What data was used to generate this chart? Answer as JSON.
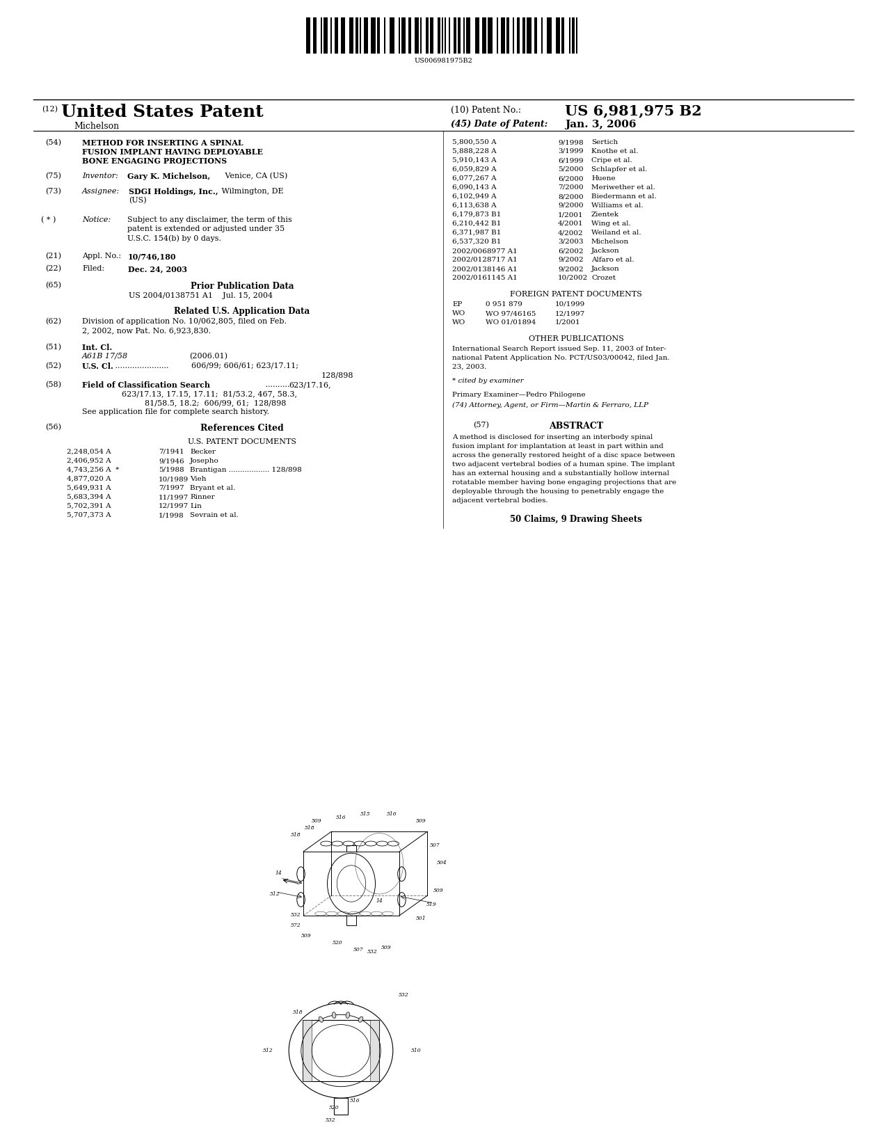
{
  "bg": "#ffffff",
  "barcode_text": "US006981975B2",
  "patent_number": "US 6,981,975 B2",
  "patent_date": "Jan. 3, 2006",
  "title_num": "(12)",
  "title_main": "United States Patent",
  "inventor_name": "Michelson",
  "pno_label": "(10) Patent No.:",
  "date_label": "(45) Date of Patent:",
  "s54_label": "(54)",
  "s54_line1": "METHOD FOR INSERTING A SPINAL",
  "s54_line2": "FUSION IMPLANT HAVING DEPLOYABLE",
  "s54_line3": "BONE ENGAGING PROJECTIONS",
  "s75_label": "(75)",
  "s75_bold": "Gary K. Michelson,",
  "s75_rest": " Venice, CA (US)",
  "s73_label": "(73)",
  "s73_bold": "SDGI Holdings, Inc.,",
  "s73_rest": " Wilmington, DE",
  "s73_line2": "(US)",
  "star_label": "( * )",
  "star_notice": "Subject to any disclaimer, the term of this",
  "star_notice2": "patent is extended or adjusted under 35",
  "star_notice3": "U.S.C. 154(b) by 0 days.",
  "s21_label": "(21)",
  "s21_bold": "10/746,180",
  "s22_label": "(22)",
  "s22_bold": "Dec. 24, 2003",
  "s65_label": "(65)",
  "s65_center": "Prior Publication Data",
  "s65_text": "US 2004/0138751 A1    Jul. 15, 2004",
  "rel_center": "Related U.S. Application Data",
  "s62_label": "(62)",
  "s62_line1": "Division of application No. 10/062,805, filed on Feb.",
  "s62_line2": "2, 2002, now Pat. No. 6,923,830.",
  "s51_label": "(51)",
  "s51_class": "A61B 17/58",
  "s51_year": "(2006.01)",
  "s52_label": "(52)",
  "s52_t1": "606/99; 606/61; 623/17.11;",
  "s52_t2": "128/898",
  "s58_label": "(58)",
  "s58_t1": "623/17.16,",
  "s58_t2": "623/17.13, 17.15, 17.11;  81/53.2, 467, 58.3,",
  "s58_t3": "81/58.5, 18.2;  606/99, 61;  128/898",
  "s58_note": "See application file for complete search history.",
  "s56_label": "(56)",
  "usp_title": "U.S. PATENT DOCUMENTS",
  "usp_left": [
    [
      "2,248,054 A",
      "7/1941",
      "Becker"
    ],
    [
      "2,406,952 A",
      "9/1946",
      "Josepho"
    ],
    [
      "4,743,256 A  *",
      "5/1988",
      "Brantigan .................. 128/898"
    ],
    [
      "4,877,020 A",
      "10/1989",
      "Vieh"
    ],
    [
      "5,649,931 A",
      "7/1997",
      "Bryant et al."
    ],
    [
      "5,683,394 A",
      "11/1997",
      "Rinner"
    ],
    [
      "5,702,391 A",
      "12/1997",
      "Lin"
    ],
    [
      "5,707,373 A",
      "1/1998",
      "Sevrain et al."
    ]
  ],
  "usp_right": [
    [
      "5,800,550 A",
      "9/1998",
      "Sertich"
    ],
    [
      "5,888,228 A",
      "3/1999",
      "Knothe et al."
    ],
    [
      "5,910,143 A",
      "6/1999",
      "Cripe et al."
    ],
    [
      "6,059,829 A",
      "5/2000",
      "Schlapfer et al."
    ],
    [
      "6,077,267 A",
      "6/2000",
      "Huene"
    ],
    [
      "6,090,143 A",
      "7/2000",
      "Meriwether et al."
    ],
    [
      "6,102,949 A",
      "8/2000",
      "Biedermann et al."
    ],
    [
      "6,113,638 A",
      "9/2000",
      "Williams et al."
    ],
    [
      "6,179,873 B1",
      "1/2001",
      "Zientek"
    ],
    [
      "6,210,442 B1",
      "4/2001",
      "Wing et al."
    ],
    [
      "6,371,987 B1",
      "4/2002",
      "Weiland et al."
    ],
    [
      "6,537,320 B1",
      "3/2003",
      "Michelson"
    ],
    [
      "2002/0068977 A1",
      "6/2002",
      "Jackson"
    ],
    [
      "2002/0128717 A1",
      "9/2002",
      "Alfaro et al."
    ],
    [
      "2002/0138146 A1",
      "9/2002",
      "Jackson"
    ],
    [
      "2002/0161145 A1",
      "10/2002",
      "Crozet"
    ]
  ],
  "fp_title": "FOREIGN PATENT DOCUMENTS",
  "fp": [
    [
      "EP",
      "0 951 879",
      "10/1999"
    ],
    [
      "WO",
      "WO 97/46165",
      "12/1997"
    ],
    [
      "WO",
      "WO 01/01894",
      "1/2001"
    ]
  ],
  "op_title": "OTHER PUBLICATIONS",
  "op_line1": "International Search Report issued Sep. 11, 2003 of Inter-",
  "op_line2": "national Patent Application No. PCT/US03/00042, filed Jan.",
  "op_line3": "23, 2003.",
  "cited_note": "* cited by examiner",
  "primary_ex": "Primary Examiner—Pedro Philogene",
  "attorney": "(74) Attorney, Agent, or Firm—Martin & Ferraro, LLP",
  "s57_label": "(57)",
  "abstract_title": "ABSTRACT",
  "abstract_line1": "A method is disclosed for inserting an interbody spinal",
  "abstract_line2": "fusion implant for implantation at least in part within and",
  "abstract_line3": "across the generally restored height of a disc space between",
  "abstract_line4": "two adjacent vertebral bodies of a human spine. The implant",
  "abstract_line5": "has an external housing and a substantially hollow internal",
  "abstract_line6": "rotatable member having bone engaging projections that are",
  "abstract_line7": "deployable through the housing to penetrably engage the",
  "abstract_line8": "adjacent vertebral bodies.",
  "claims_text": "50 Claims, 9 Drawing Sheets",
  "fig1_labels": [
    "509",
    "516",
    "515",
    "516",
    "509",
    "518",
    "518",
    "509",
    "507",
    "504",
    "14",
    "512",
    "509",
    "532",
    "572",
    "509",
    "520",
    "507",
    "532 509",
    "501",
    "519",
    "14"
  ],
  "fig2_labels": [
    "532",
    "518",
    "512",
    "510",
    "516",
    "520",
    "532"
  ]
}
